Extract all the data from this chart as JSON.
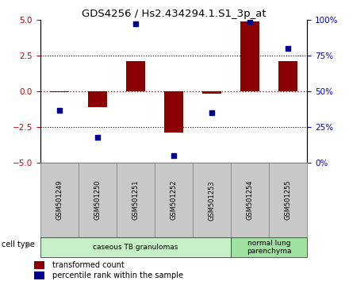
{
  "title": "GDS4256 / Hs2.434294.1.S1_3p_at",
  "samples": [
    "GSM501249",
    "GSM501250",
    "GSM501251",
    "GSM501252",
    "GSM501253",
    "GSM501254",
    "GSM501255"
  ],
  "transformed_count": [
    -0.05,
    -1.1,
    2.1,
    -2.85,
    -0.15,
    4.9,
    2.1
  ],
  "percentile_rank": [
    37,
    18,
    97,
    5,
    35,
    99,
    80
  ],
  "ylim_left": [
    -5,
    5
  ],
  "ylim_right": [
    0,
    100
  ],
  "yticks_left": [
    -5,
    -2.5,
    0,
    2.5,
    5
  ],
  "ytick_labels_right": [
    "0%",
    "25%",
    "50%",
    "75%",
    "100%"
  ],
  "bar_color": "#8B0000",
  "scatter_color": "#00008B",
  "group_info": [
    {
      "label": "caseous TB granulomas",
      "start": 0,
      "end": 4,
      "color": "#c8f0c8"
    },
    {
      "label": "normal lung\nparenchyma",
      "start": 5,
      "end": 6,
      "color": "#a0e0a0"
    }
  ],
  "legend_bar_label": "transformed count",
  "legend_scatter_label": "percentile rank within the sample",
  "cell_type_label": "cell type",
  "left_axis_color": "#cc0000",
  "right_axis_color": "#0000cc",
  "sample_box_color": "#c8c8c8",
  "sample_box_edge": "#888888"
}
